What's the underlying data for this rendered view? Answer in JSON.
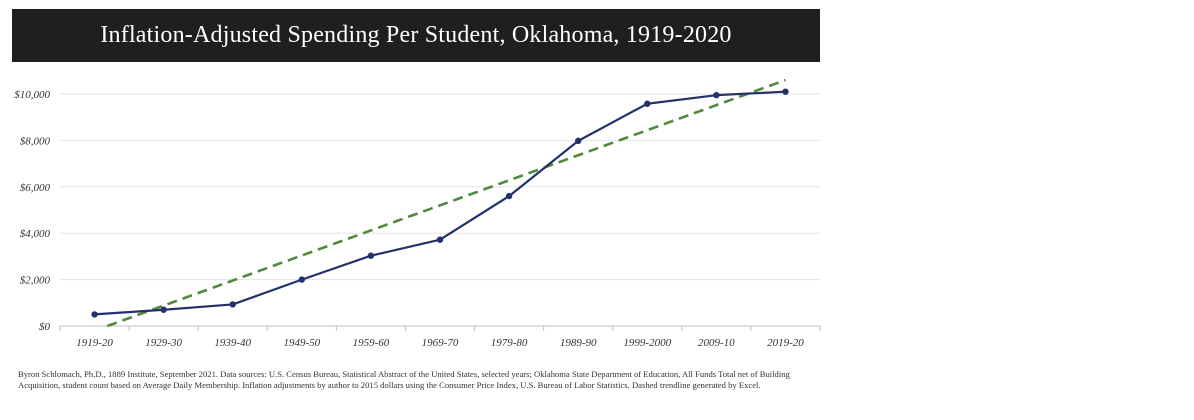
{
  "chart_data": {
    "type": "line",
    "title": "Inflation-Adjusted Spending Per Student, Oklahoma, 1919-2020",
    "categories": [
      "1919-20",
      "1929-30",
      "1939-40",
      "1949-50",
      "1959-60",
      "1969-70",
      "1979-80",
      "1989-90",
      "1999-2000",
      "2009-10",
      "2019-20"
    ],
    "series": [
      {
        "values": [
          500,
          700,
          930,
          2000,
          3030,
          3720,
          5600,
          7980,
          9580,
          9950,
          10100
        ],
        "color": "#24326b",
        "style": "solid-with-markers"
      },
      {
        "values": [
          -200,
          880,
          1960,
          3040,
          4120,
          5200,
          6280,
          7360,
          8440,
          9520,
          10600
        ],
        "color": "#4f8a3a",
        "style": "dashed"
      }
    ],
    "yticks": [
      {
        "value": 0,
        "label": "$0"
      },
      {
        "value": 2000,
        "label": "$2,000"
      },
      {
        "value": 4000,
        "label": "$4,000"
      },
      {
        "value": 6000,
        "label": "$6,000"
      },
      {
        "value": 8000,
        "label": "$8,000"
      },
      {
        "value": 10000,
        "label": "$10,000"
      }
    ],
    "ylim": [
      0,
      10000
    ],
    "grid": true,
    "xlabel": "",
    "ylabel": ""
  },
  "note": "Byron Schlomach, Ph.D., 1889 Institute, September 2021. Data sources: U.S. Census Bureau, Statistical Abstract of the United States, selected years; Oklahoma State Department of Education, All Funds Total net of Building Acquisition, student count based on Average Daily Membership. Inflation adjustments by author to 2015 dollars using the Consumer Price Index, U.S. Bureau of Labor Statistics. Dashed trendline generated by Excel."
}
